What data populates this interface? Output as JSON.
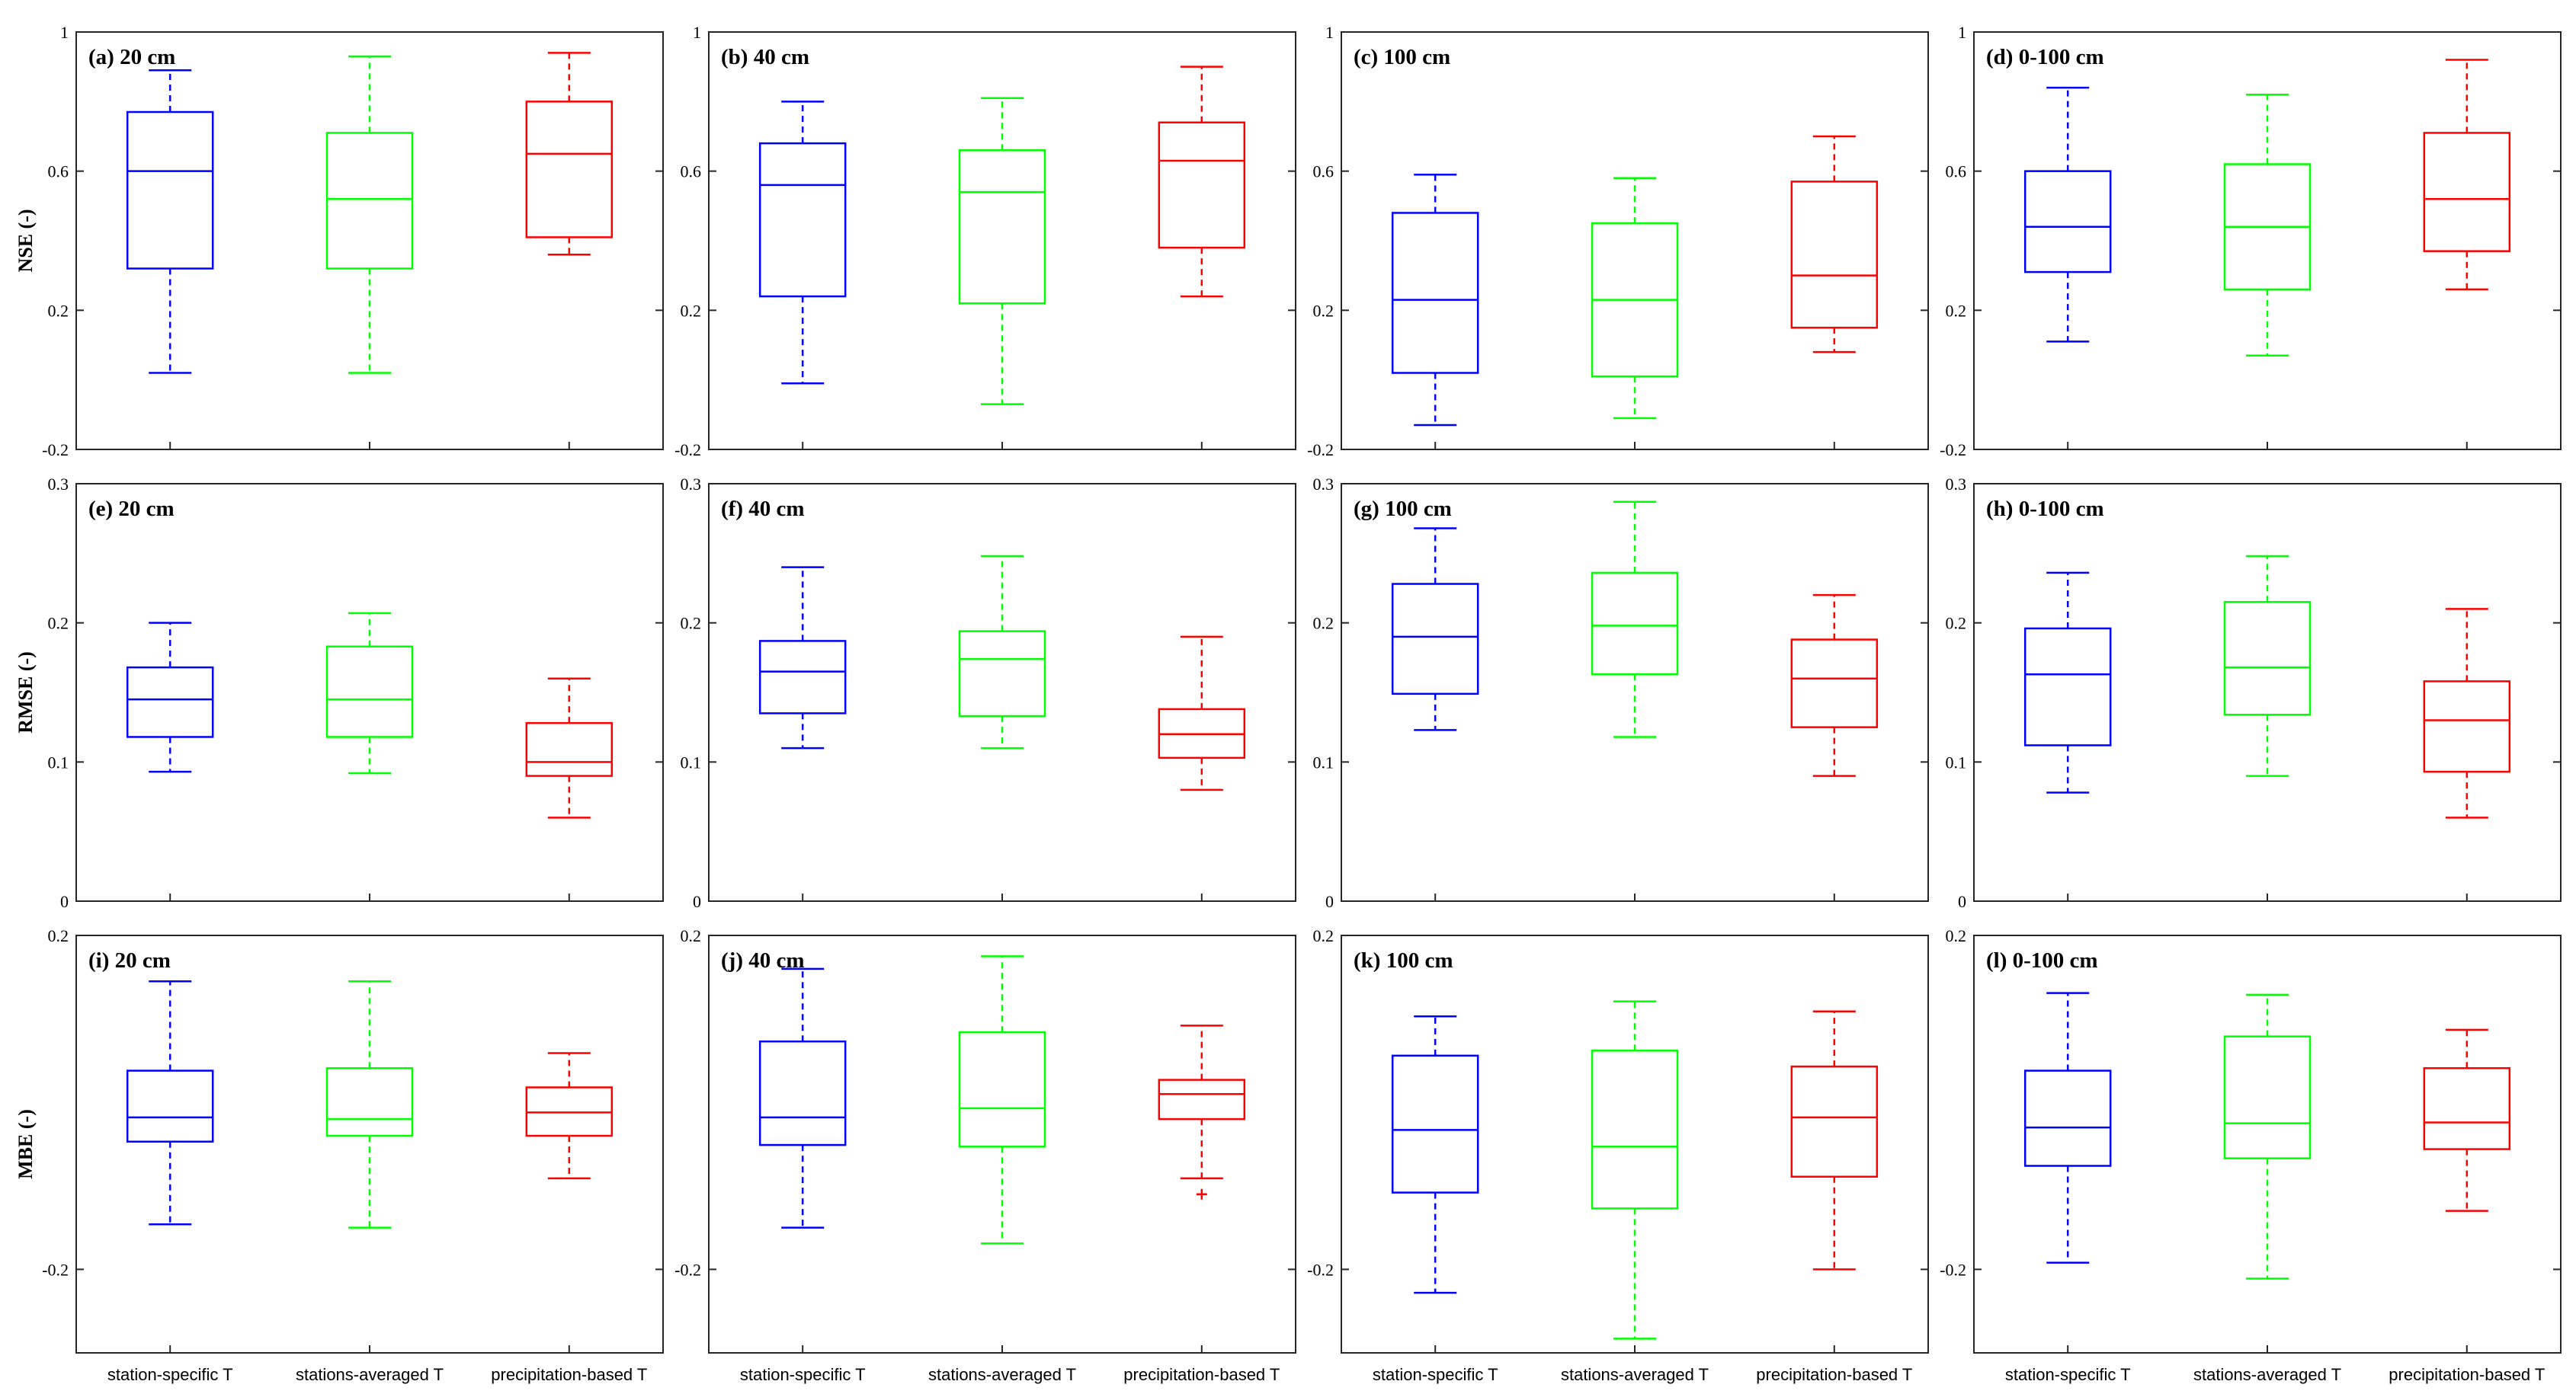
{
  "chart_data": {
    "type": "box",
    "categories": [
      "station-specific T",
      "stations-averaged T",
      "precipitation-based T"
    ],
    "colors": [
      "#0000ff",
      "#00ff00",
      "#ff0000"
    ],
    "rows": [
      {
        "ylabel": "NSE (-)",
        "ylim": [
          -0.2,
          1
        ],
        "yticks": [
          -0.2,
          0.2,
          0.6,
          1
        ],
        "ytick_labels": [
          "-0.2",
          "0.2",
          "0.6",
          "1"
        ],
        "panels": [
          {
            "label": "(a) 20 cm",
            "boxes": [
              {
                "min": 0.02,
                "q1": 0.32,
                "median": 0.6,
                "q3": 0.77,
                "max": 0.89,
                "outliers": []
              },
              {
                "min": 0.02,
                "q1": 0.32,
                "median": 0.52,
                "q3": 0.71,
                "max": 0.93,
                "outliers": []
              },
              {
                "min": 0.36,
                "q1": 0.41,
                "median": 0.65,
                "q3": 0.8,
                "max": 0.94,
                "outliers": []
              }
            ]
          },
          {
            "label": "(b) 40 cm",
            "boxes": [
              {
                "min": -0.01,
                "q1": 0.24,
                "median": 0.56,
                "q3": 0.68,
                "max": 0.8,
                "outliers": []
              },
              {
                "min": -0.07,
                "q1": 0.22,
                "median": 0.54,
                "q3": 0.66,
                "max": 0.81,
                "outliers": []
              },
              {
                "min": 0.24,
                "q1": 0.38,
                "median": 0.63,
                "q3": 0.74,
                "max": 0.9,
                "outliers": []
              }
            ]
          },
          {
            "label": "(c) 100 cm",
            "boxes": [
              {
                "min": -0.13,
                "q1": 0.02,
                "median": 0.23,
                "q3": 0.48,
                "max": 0.59,
                "outliers": []
              },
              {
                "min": -0.11,
                "q1": 0.01,
                "median": 0.23,
                "q3": 0.45,
                "max": 0.58,
                "outliers": []
              },
              {
                "min": 0.08,
                "q1": 0.15,
                "median": 0.3,
                "q3": 0.57,
                "max": 0.7,
                "outliers": []
              }
            ]
          },
          {
            "label": "(d) 0-100 cm",
            "boxes": [
              {
                "min": 0.11,
                "q1": 0.31,
                "median": 0.44,
                "q3": 0.6,
                "max": 0.84,
                "outliers": []
              },
              {
                "min": 0.07,
                "q1": 0.26,
                "median": 0.44,
                "q3": 0.62,
                "max": 0.82,
                "outliers": []
              },
              {
                "min": 0.26,
                "q1": 0.37,
                "median": 0.52,
                "q3": 0.71,
                "max": 0.92,
                "outliers": []
              }
            ]
          }
        ]
      },
      {
        "ylabel": "RMSE (-)",
        "ylim": [
          0,
          0.3
        ],
        "yticks": [
          0,
          0.1,
          0.2,
          0.3
        ],
        "ytick_labels": [
          "0",
          "0.1",
          "0.2",
          "0.3"
        ],
        "panels": [
          {
            "label": "(e) 20 cm",
            "boxes": [
              {
                "min": 0.093,
                "q1": 0.118,
                "median": 0.145,
                "q3": 0.168,
                "max": 0.2,
                "outliers": []
              },
              {
                "min": 0.092,
                "q1": 0.118,
                "median": 0.145,
                "q3": 0.183,
                "max": 0.207,
                "outliers": []
              },
              {
                "min": 0.06,
                "q1": 0.09,
                "median": 0.1,
                "q3": 0.128,
                "max": 0.16,
                "outliers": []
              }
            ]
          },
          {
            "label": "(f) 40 cm",
            "boxes": [
              {
                "min": 0.11,
                "q1": 0.135,
                "median": 0.165,
                "q3": 0.187,
                "max": 0.24,
                "outliers": []
              },
              {
                "min": 0.11,
                "q1": 0.133,
                "median": 0.174,
                "q3": 0.194,
                "max": 0.248,
                "outliers": []
              },
              {
                "min": 0.08,
                "q1": 0.103,
                "median": 0.12,
                "q3": 0.138,
                "max": 0.19,
                "outliers": []
              }
            ]
          },
          {
            "label": "(g) 100 cm",
            "boxes": [
              {
                "min": 0.123,
                "q1": 0.149,
                "median": 0.19,
                "q3": 0.228,
                "max": 0.268,
                "outliers": []
              },
              {
                "min": 0.118,
                "q1": 0.163,
                "median": 0.198,
                "q3": 0.236,
                "max": 0.287,
                "outliers": []
              },
              {
                "min": 0.09,
                "q1": 0.125,
                "median": 0.16,
                "q3": 0.188,
                "max": 0.22,
                "outliers": []
              }
            ]
          },
          {
            "label": "(h) 0-100 cm",
            "boxes": [
              {
                "min": 0.078,
                "q1": 0.112,
                "median": 0.163,
                "q3": 0.196,
                "max": 0.236,
                "outliers": []
              },
              {
                "min": 0.09,
                "q1": 0.134,
                "median": 0.168,
                "q3": 0.215,
                "max": 0.248,
                "outliers": []
              },
              {
                "min": 0.06,
                "q1": 0.093,
                "median": 0.13,
                "q3": 0.158,
                "max": 0.21,
                "outliers": []
              }
            ]
          }
        ]
      },
      {
        "ylabel": "MBE (-)",
        "ylim": [
          -0.3,
          0.2
        ],
        "yticks": [
          -0.2,
          0.2
        ],
        "ytick_labels": [
          "-0.2",
          "0.2"
        ],
        "panels": [
          {
            "label": "(i) 20 cm",
            "boxes": [
              {
                "min": -0.146,
                "q1": -0.047,
                "median": -0.018,
                "q3": 0.038,
                "max": 0.145,
                "outliers": []
              },
              {
                "min": -0.15,
                "q1": -0.04,
                "median": -0.02,
                "q3": 0.041,
                "max": 0.145,
                "outliers": []
              },
              {
                "min": -0.091,
                "q1": -0.04,
                "median": -0.012,
                "q3": 0.018,
                "max": 0.059,
                "outliers": []
              }
            ]
          },
          {
            "label": "(j) 40 cm",
            "boxes": [
              {
                "min": -0.15,
                "q1": -0.051,
                "median": -0.018,
                "q3": 0.073,
                "max": 0.16,
                "outliers": []
              },
              {
                "min": -0.169,
                "q1": -0.053,
                "median": -0.007,
                "q3": 0.084,
                "max": 0.175,
                "outliers": []
              },
              {
                "min": -0.091,
                "q1": -0.02,
                "median": 0.01,
                "q3": 0.027,
                "max": 0.092,
                "outliers": [
                  -0.11
                ]
              }
            ]
          },
          {
            "label": "(k) 100 cm",
            "boxes": [
              {
                "min": -0.228,
                "q1": -0.108,
                "median": -0.033,
                "q3": 0.056,
                "max": 0.103,
                "outliers": []
              },
              {
                "min": -0.283,
                "q1": -0.127,
                "median": -0.053,
                "q3": 0.062,
                "max": 0.121,
                "outliers": []
              },
              {
                "min": -0.2,
                "q1": -0.089,
                "median": -0.018,
                "q3": 0.043,
                "max": 0.109,
                "outliers": []
              }
            ]
          },
          {
            "label": "(l) 0-100 cm",
            "boxes": [
              {
                "min": -0.192,
                "q1": -0.076,
                "median": -0.03,
                "q3": 0.038,
                "max": 0.131,
                "outliers": []
              },
              {
                "min": -0.211,
                "q1": -0.067,
                "median": -0.025,
                "q3": 0.079,
                "max": 0.129,
                "outliers": []
              },
              {
                "min": -0.13,
                "q1": -0.056,
                "median": -0.024,
                "q3": 0.041,
                "max": 0.087,
                "outliers": []
              }
            ]
          }
        ]
      }
    ]
  }
}
